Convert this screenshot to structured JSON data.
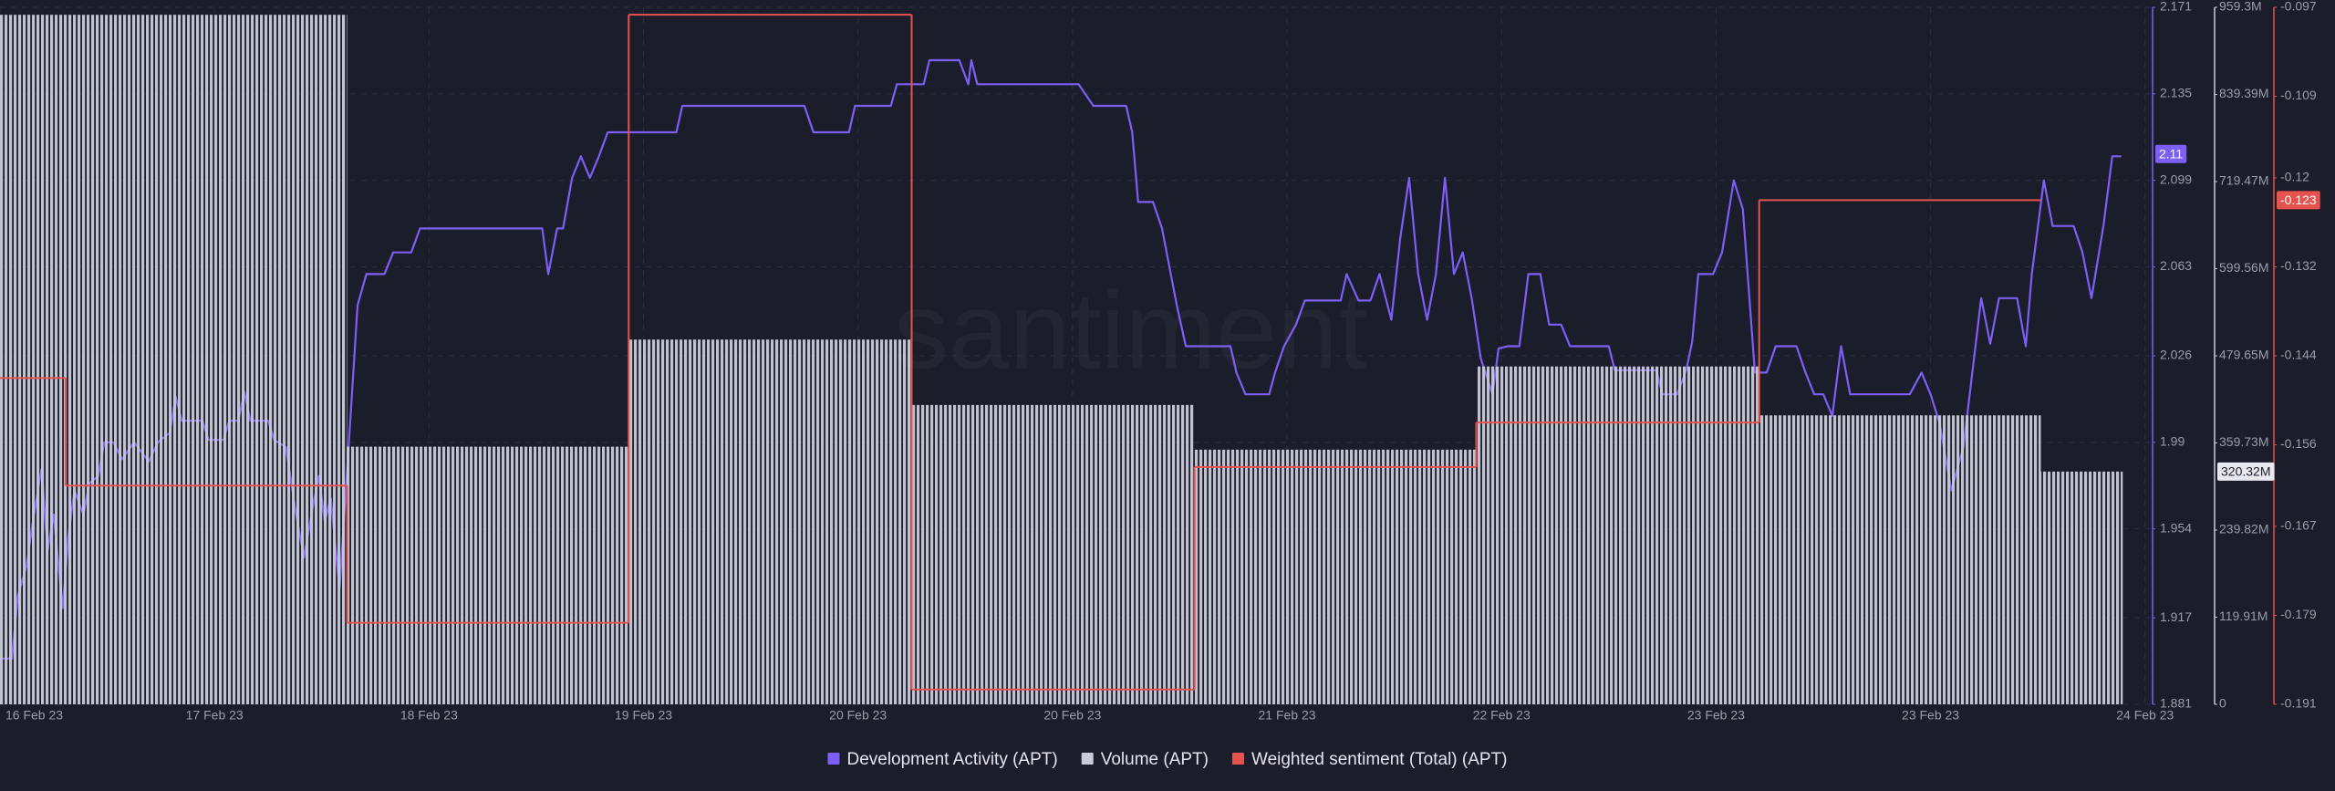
{
  "chart_data": {
    "type": "multi-axis",
    "watermark": "santiment",
    "grid": true,
    "xlim": [
      0,
      10.035
    ],
    "xticks": [
      {
        "value": 0,
        "label": "16 Feb 23"
      },
      {
        "value": 1,
        "label": "17 Feb 23"
      },
      {
        "value": 2,
        "label": "18 Feb 23"
      },
      {
        "value": 3,
        "label": "19 Feb 23"
      },
      {
        "value": 4,
        "label": "20 Feb 23"
      },
      {
        "value": 5,
        "label": "20 Feb 23"
      },
      {
        "value": 6,
        "label": "21 Feb 23"
      },
      {
        "value": 7,
        "label": "22 Feb 23"
      },
      {
        "value": 8,
        "label": "23 Feb 23"
      },
      {
        "value": 9,
        "label": "23 Feb 23"
      },
      {
        "value": 10,
        "label": "24 Feb 23"
      }
    ],
    "ylim": [
      1.881,
      2.171
    ],
    "yticks": [
      2.171,
      2.135,
      2.099,
      2.063,
      2.026,
      1.99,
      1.954,
      1.917,
      1.881
    ],
    "y2lim": [
      0,
      959300000
    ],
    "y2ticks": [
      {
        "value": 959300000,
        "label": "959.3M"
      },
      {
        "value": 839390000,
        "label": "839.39M"
      },
      {
        "value": 719470000,
        "label": "719.47M"
      },
      {
        "value": 599560000,
        "label": "599.56M"
      },
      {
        "value": 479650000,
        "label": "479.65M"
      },
      {
        "value": 359730000,
        "label": "359.73M"
      },
      {
        "value": 239820000,
        "label": "239.82M"
      },
      {
        "value": 119910000,
        "label": "119.91M"
      },
      0
    ],
    "y3lim": [
      -0.191,
      -0.097
    ],
    "y3ticks": [
      -0.097,
      -0.109,
      -0.12,
      -0.132,
      -0.144,
      -0.156,
      -0.167,
      -0.179,
      -0.191
    ],
    "series": [
      {
        "name": "Development Activity (APT)",
        "type": "line",
        "axis": "y",
        "color": "#7d5ff5",
        "badge": 2.11,
        "x": [
          0,
          0.056,
          0.083,
          0.125,
          0.153,
          0.194,
          0.222,
          0.25,
          0.292,
          0.319,
          0.347,
          0.389,
          0.417,
          0.458,
          0.486,
          0.528,
          0.569,
          0.625,
          0.694,
          0.736,
          0.792,
          0.819,
          0.847,
          0.944,
          0.972,
          1.042,
          1.069,
          1.111,
          1.139,
          1.167,
          1.25,
          1.278,
          1.333,
          1.375,
          1.417,
          1.458,
          1.486,
          1.514,
          1.542,
          1.583,
          1.625,
          1.667,
          1.708,
          1.792,
          1.833,
          1.917,
          1.958,
          2.528,
          2.556,
          2.597,
          2.625,
          2.667,
          2.708,
          2.75,
          2.792,
          2.833,
          3.153,
          3.181,
          3.75,
          3.792,
          3.958,
          3.986,
          4.153,
          4.181,
          4.306,
          4.333,
          4.472,
          4.514,
          4.528,
          4.556,
          5.028,
          5.097,
          5.25,
          5.278,
          5.306,
          5.375,
          5.417,
          5.458,
          5.486,
          5.528,
          5.736,
          5.764,
          5.806,
          5.917,
          5.944,
          5.986,
          6.042,
          6.083,
          6.25,
          6.278,
          6.333,
          6.389,
          6.431,
          6.486,
          6.528,
          6.569,
          6.611,
          6.653,
          6.694,
          6.736,
          6.778,
          6.819,
          6.861,
          6.903,
          6.958,
          6.986,
          7.028,
          7.083,
          7.125,
          7.181,
          7.222,
          7.278,
          7.319,
          7.5,
          7.528,
          7.722,
          7.75,
          7.819,
          7.861,
          7.889,
          7.917,
          7.986,
          8.028,
          8.083,
          8.125,
          8.181,
          8.236,
          8.278,
          8.375,
          8.417,
          8.458,
          8.5,
          8.542,
          8.583,
          8.625,
          8.903,
          8.958,
          9,
          9.042,
          9.097,
          9.153,
          9.236,
          9.278,
          9.319,
          9.403,
          9.444,
          9.472,
          9.528,
          9.569,
          9.667,
          9.708,
          9.75,
          9.806,
          9.847,
          9.889
        ],
        "values": [
          1.9,
          1.9,
          1.926,
          1.939,
          1.957,
          1.979,
          1.945,
          1.96,
          1.921,
          1.951,
          1.97,
          1.96,
          1.973,
          1.976,
          1.99,
          1.99,
          1.983,
          1.99,
          1.982,
          1.99,
          1.994,
          2.009,
          1.999,
          1.999,
          1.991,
          1.991,
          1.999,
          1.999,
          2.011,
          1.999,
          1.999,
          1.991,
          1.988,
          1.963,
          1.942,
          1.963,
          1.976,
          1.957,
          1.967,
          1.929,
          1.988,
          2.047,
          2.06,
          2.06,
          2.069,
          2.069,
          2.079,
          2.079,
          2.06,
          2.079,
          2.079,
          2.1,
          2.109,
          2.1,
          2.109,
          2.119,
          2.119,
          2.13,
          2.13,
          2.119,
          2.119,
          2.13,
          2.13,
          2.139,
          2.139,
          2.149,
          2.149,
          2.139,
          2.149,
          2.139,
          2.139,
          2.13,
          2.13,
          2.119,
          2.09,
          2.09,
          2.079,
          2.06,
          2.047,
          2.03,
          2.03,
          2.019,
          2.01,
          2.01,
          2.019,
          2.03,
          2.039,
          2.049,
          2.049,
          2.06,
          2.049,
          2.049,
          2.06,
          2.041,
          2.075,
          2.1,
          2.06,
          2.041,
          2.06,
          2.1,
          2.06,
          2.069,
          2.05,
          2.025,
          2.01,
          2.029,
          2.03,
          2.03,
          2.06,
          2.06,
          2.039,
          2.039,
          2.03,
          2.03,
          2.02,
          2.02,
          2.01,
          2.01,
          2.02,
          2.032,
          2.06,
          2.06,
          2.069,
          2.099,
          2.087,
          2.019,
          2.019,
          2.03,
          2.03,
          2.019,
          2.01,
          2.01,
          2.001,
          2.03,
          2.01,
          2.01,
          2.019,
          2.01,
          1.998,
          1.97,
          1.988,
          2.05,
          2.031,
          2.05,
          2.05,
          2.03,
          2.06,
          2.099,
          2.08,
          2.08,
          2.069,
          2.05,
          2.08,
          2.109,
          2.109
        ]
      },
      {
        "name": "Volume (APT)",
        "type": "bar",
        "axis": "y2",
        "color": "#c9cbd9",
        "badge": {
          "value": 320320000,
          "label": "320.32M"
        },
        "bins": [
          0,
          1.618,
          2.931,
          4.25,
          5.569,
          6.882,
          8.201,
          9.514,
          9.896
        ],
        "values": [
          949000000,
          354600000,
          502000000,
          412000000,
          350500000,
          465000000,
          397700000,
          320320000
        ]
      },
      {
        "name": "Weighted sentiment (Total) (APT)",
        "type": "step",
        "axis": "y3",
        "color": "#e6534f",
        "badge": -0.123,
        "bins": [
          0,
          0.306,
          1.618,
          2.931,
          4.25,
          5.569,
          6.882,
          8.201,
          9.514
        ],
        "values": [
          -0.147,
          -0.1615,
          -0.18,
          -0.098,
          -0.189,
          -0.159,
          -0.153,
          -0.123
        ]
      }
    ]
  }
}
